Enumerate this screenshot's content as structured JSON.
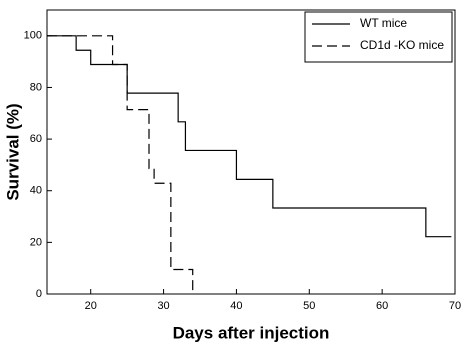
{
  "chart_data": {
    "type": "step",
    "x_label": "Days after injection",
    "y_label": "Survival (%)",
    "xlim": [
      14,
      70
    ],
    "xticks": [
      20,
      30,
      40,
      50,
      60,
      70
    ],
    "ylim": [
      0,
      110
    ],
    "yticks": [
      0,
      20,
      40,
      60,
      80,
      100
    ],
    "legend": "top-right",
    "series": [
      {
        "name": "WT mice",
        "color": "#000000",
        "line_style": "solid",
        "x": [
          14,
          18,
          20,
          25,
          32,
          33,
          40,
          45,
          66,
          69.5
        ],
        "values": [
          100,
          94.4,
          88.9,
          77.8,
          66.7,
          55.6,
          44.4,
          33.3,
          22.2,
          22.2
        ]
      },
      {
        "name": "CD1d -KO mice",
        "color": "#000000",
        "line_style": "dashed",
        "x": [
          14,
          23,
          25,
          28,
          28.7,
          31,
          34
        ],
        "values": [
          100,
          88.9,
          71.4,
          48.6,
          42.9,
          9.5,
          0
        ]
      }
    ]
  }
}
